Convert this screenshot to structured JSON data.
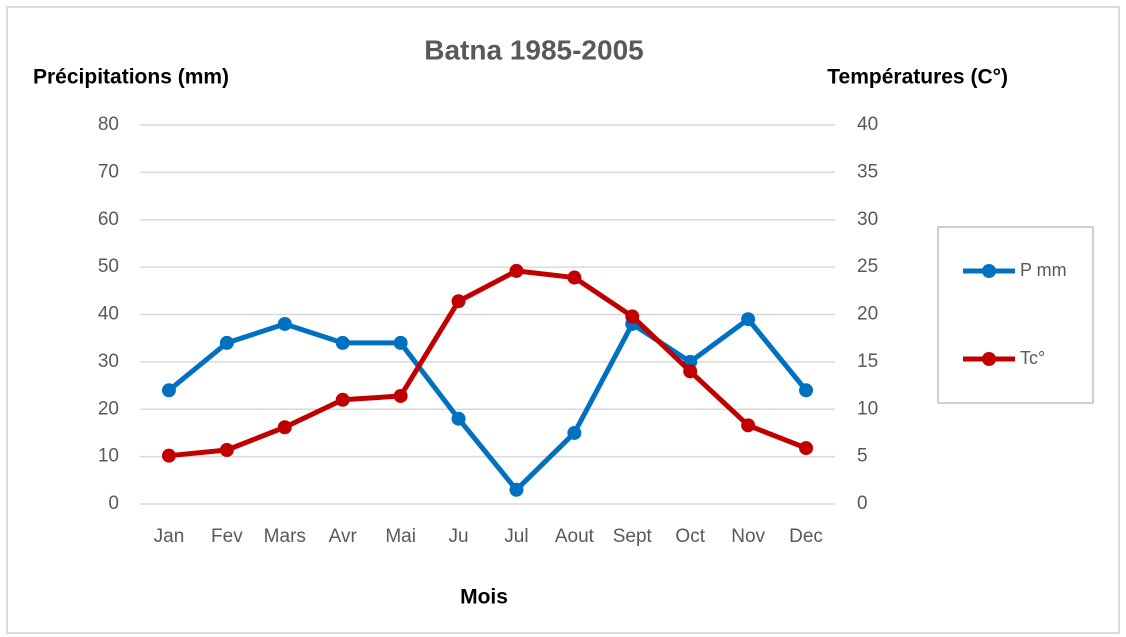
{
  "chart_data": {
    "type": "line",
    "title": "Batna 1985-2005",
    "y_label": "Précipitations (mm)",
    "y2_label": "Températures (C°)",
    "x_label": "Mois",
    "categories": [
      "Jan",
      "Fev",
      "Mars",
      "Avr",
      "Mai",
      "Ju",
      "Jul",
      "Aout",
      "Sept",
      "Oct",
      "Nov",
      "Dec"
    ],
    "series": [
      {
        "name": "P mm",
        "color": "#0070c0",
        "values": [
          24,
          34,
          38,
          34,
          34,
          18,
          3,
          15,
          38,
          30,
          39,
          24
        ]
      },
      {
        "name": "Tc°",
        "color": "#c00000",
        "axis": "y2",
        "values": [
          5.1,
          5.7,
          8.1,
          11,
          11.4,
          21.4,
          24.6,
          23.9,
          19.8,
          14,
          8.3,
          5.9
        ]
      }
    ],
    "ylim": [
      0,
      80
    ],
    "yticks": [
      0,
      10,
      20,
      30,
      40,
      50,
      60,
      70,
      80
    ],
    "y2lim": [
      0,
      40
    ],
    "y2ticks": [
      0,
      5,
      10,
      15,
      20,
      25,
      30,
      35,
      40
    ],
    "grid": true,
    "legend": "right"
  }
}
